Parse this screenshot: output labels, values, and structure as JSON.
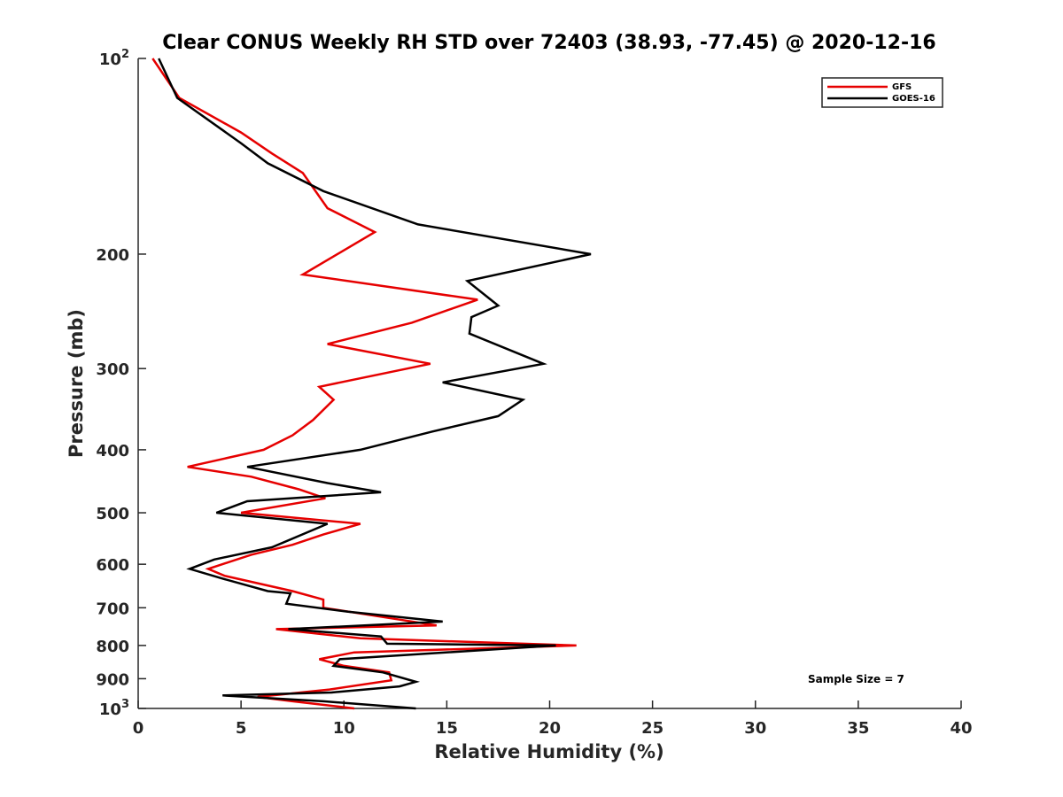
{
  "chart_data": {
    "type": "line",
    "title": "Clear CONUS Weekly RH STD over 72403 (38.93, -77.45) @ 2020-12-16",
    "xlabel": "Relative Humidity (%)",
    "ylabel": "Pressure (mb)",
    "xlim": [
      0,
      40
    ],
    "ylim": [
      100,
      1000
    ],
    "yscale": "log",
    "y_reversed": true,
    "grid": false,
    "legend_position": "top-right",
    "x_ticks": [
      "0",
      "5",
      "10",
      "15",
      "20",
      "25",
      "30",
      "35",
      "40"
    ],
    "y_ticks": [
      {
        "value": 100,
        "base": "10",
        "exp": "2"
      },
      {
        "value": 200,
        "label": "200"
      },
      {
        "value": 300,
        "label": "300"
      },
      {
        "value": 400,
        "label": "400"
      },
      {
        "value": 500,
        "label": "500"
      },
      {
        "value": 600,
        "label": "600"
      },
      {
        "value": 700,
        "label": "700"
      },
      {
        "value": 800,
        "label": "800"
      },
      {
        "value": 900,
        "label": "900"
      },
      {
        "value": 1000,
        "base": "10",
        "exp": "3"
      }
    ],
    "annotation": "Sample Size = 7",
    "series": [
      {
        "name": "GFS",
        "color": "#e60000",
        "points": [
          [
            0.7,
            100
          ],
          [
            2.0,
            115
          ],
          [
            5.0,
            130
          ],
          [
            6.5,
            140
          ],
          [
            8.0,
            150
          ],
          [
            9.2,
            170
          ],
          [
            11.5,
            185
          ],
          [
            8.0,
            215
          ],
          [
            16.5,
            235
          ],
          [
            13.3,
            255
          ],
          [
            9.2,
            275
          ],
          [
            14.2,
            295
          ],
          [
            8.8,
            320
          ],
          [
            9.5,
            335
          ],
          [
            8.5,
            360
          ],
          [
            7.5,
            380
          ],
          [
            6.1,
            400
          ],
          [
            2.4,
            425
          ],
          [
            5.5,
            440
          ],
          [
            7.8,
            460
          ],
          [
            9.1,
            475
          ],
          [
            5.0,
            500
          ],
          [
            10.8,
            520
          ],
          [
            9.0,
            540
          ],
          [
            7.5,
            560
          ],
          [
            5.5,
            580
          ],
          [
            3.4,
            610
          ],
          [
            4.2,
            625
          ],
          [
            7.5,
            660
          ],
          [
            9.0,
            680
          ],
          [
            9.0,
            700
          ],
          [
            14.5,
            745
          ],
          [
            6.7,
            755
          ],
          [
            10.8,
            780
          ],
          [
            21.3,
            800
          ],
          [
            10.5,
            820
          ],
          [
            8.8,
            840
          ],
          [
            10.0,
            860
          ],
          [
            12.2,
            880
          ],
          [
            12.3,
            905
          ],
          [
            9.3,
            935
          ],
          [
            5.8,
            960
          ],
          [
            7.5,
            975
          ],
          [
            10.5,
            1000
          ]
        ]
      },
      {
        "name": "GOES-16",
        "color": "#000000",
        "points": [
          [
            1.0,
            100
          ],
          [
            1.9,
            115
          ],
          [
            5.0,
            135
          ],
          [
            6.3,
            145
          ],
          [
            9.0,
            160
          ],
          [
            13.6,
            180
          ],
          [
            22.0,
            200
          ],
          [
            16.0,
            220
          ],
          [
            17.5,
            240
          ],
          [
            16.2,
            250
          ],
          [
            16.1,
            265
          ],
          [
            19.7,
            295
          ],
          [
            14.8,
            315
          ],
          [
            18.7,
            335
          ],
          [
            17.5,
            355
          ],
          [
            14.3,
            375
          ],
          [
            10.8,
            400
          ],
          [
            5.3,
            425
          ],
          [
            9.2,
            450
          ],
          [
            11.8,
            465
          ],
          [
            5.3,
            480
          ],
          [
            3.8,
            500
          ],
          [
            9.2,
            520
          ],
          [
            6.5,
            565
          ],
          [
            3.7,
            590
          ],
          [
            2.5,
            610
          ],
          [
            4.0,
            630
          ],
          [
            6.3,
            660
          ],
          [
            7.4,
            665
          ],
          [
            7.2,
            690
          ],
          [
            10.2,
            710
          ],
          [
            14.8,
            735
          ],
          [
            7.3,
            755
          ],
          [
            11.8,
            775
          ],
          [
            12.1,
            795
          ],
          [
            20.3,
            800
          ],
          [
            9.8,
            840
          ],
          [
            9.5,
            860
          ],
          [
            11.9,
            880
          ],
          [
            13.5,
            910
          ],
          [
            12.7,
            925
          ],
          [
            9.4,
            945
          ],
          [
            4.1,
            955
          ],
          [
            9.0,
            975
          ],
          [
            13.5,
            1000
          ]
        ]
      }
    ]
  }
}
